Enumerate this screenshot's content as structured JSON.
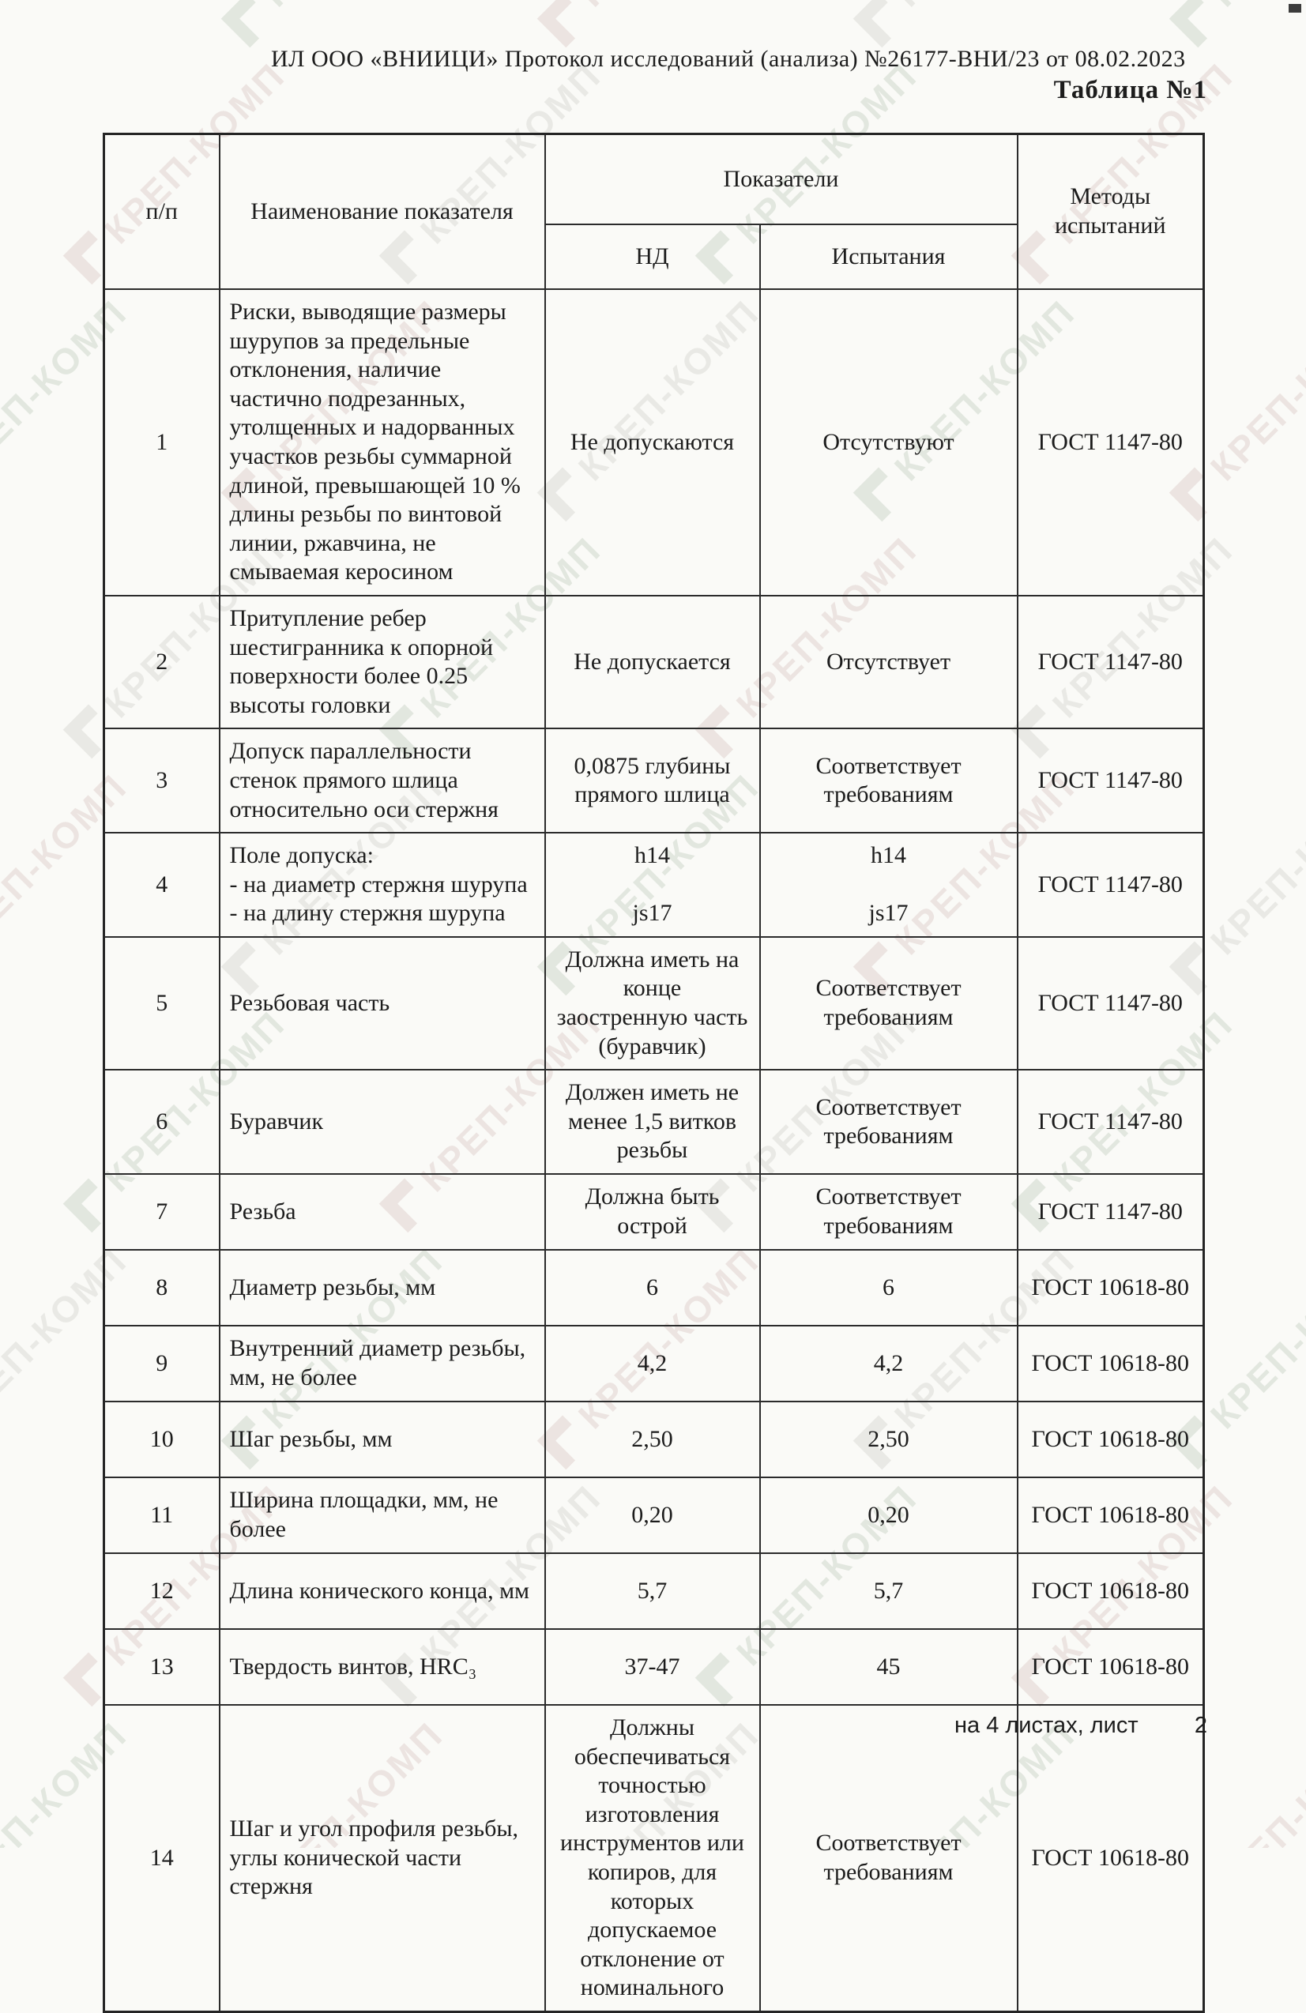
{
  "document": {
    "header_line": "ИЛ ООО «ВНИИЦИ» Протокол исследований (анализа)  №26177-ВНИ/23 от  08.02.2023",
    "table_caption": "Таблица №1",
    "footer": {
      "sheets_text": "на 4  листах, лист",
      "page_number": "2"
    }
  },
  "watermark": {
    "text": "КРЕП-КОМП",
    "colors": [
      "#e9e9e5",
      "#e2e7df",
      "#ece4e1"
    ]
  },
  "table": {
    "headers": {
      "num": "п/п",
      "name": "Наименование показателя",
      "group": "Показатели",
      "nd": "НД",
      "test": "Испытания",
      "methods": "Методы испытаний"
    },
    "rows": [
      {
        "num": "1",
        "name": "Риски, выводящие размеры шурупов за предельные отклонения, наличие частично подрезанных, утолщенных и надорванных участков резьбы суммарной длиной, превышающей 10 % длины резьбы по винтовой линии, ржавчина, не смываемая керосином",
        "nd": "Не допускаются",
        "test": "Отсутствуют",
        "method": "ГОСТ 1147-80"
      },
      {
        "num": "2",
        "name": "Притупление ребер шестигранника к опорной поверхности более 0.25 высоты головки",
        "nd": "Не допускается",
        "test": "Отсутствует",
        "method": "ГОСТ 1147-80"
      },
      {
        "num": "3",
        "name": "Допуск параллельности стенок прямого шлица относительно оси стержня",
        "nd": "0,0875 глубины прямого шлица",
        "test": "Соответствует требованиям",
        "method": "ГОСТ 1147-80"
      },
      {
        "num": "4",
        "name": "Поле допуска:\n- на диаметр стержня шурупа\n- на длину стержня шурупа",
        "nd": "h14\n\njs17",
        "test": "h14\n\njs17",
        "method": "ГОСТ 1147-80"
      },
      {
        "num": "5",
        "name": "Резьбовая часть",
        "nd": "Должна иметь на конце заостренную часть (буравчик)",
        "test": "Соответствует требованиям",
        "method": "ГОСТ 1147-80"
      },
      {
        "num": "6",
        "name": "Буравчик",
        "nd": "Должен иметь не менее 1,5 витков резьбы",
        "test": "Соответствует требованиям",
        "method": "ГОСТ 1147-80"
      },
      {
        "num": "7",
        "name": "Резьба",
        "nd": "Должна быть острой",
        "test": "Соответствует требованиям",
        "method": "ГОСТ 1147-80"
      },
      {
        "num": "8",
        "name": "Диаметр резьбы, мм",
        "nd": "6",
        "test": "6",
        "method": "ГОСТ 10618-80"
      },
      {
        "num": "9",
        "name": "Внутренний диаметр резьбы, мм, не более",
        "nd": "4,2",
        "test": "4,2",
        "method": "ГОСТ 10618-80"
      },
      {
        "num": "10",
        "name": "Шаг резьбы, мм",
        "nd": "2,50",
        "test": "2,50",
        "method": "ГОСТ 10618-80"
      },
      {
        "num": "11",
        "name": "Ширина площадки, мм, не более",
        "nd": "0,20",
        "test": "0,20",
        "method": "ГОСТ 10618-80"
      },
      {
        "num": "12",
        "name": "Длина конического конца, мм",
        "nd": "5,7",
        "test": "5,7",
        "method": "ГОСТ 10618-80"
      },
      {
        "num": "13",
        "name": "Твердость винтов, HRC₃",
        "nd": "37-47",
        "test": "45",
        "method": "ГОСТ 10618-80"
      },
      {
        "num": "14",
        "name": "Шаг и угол профиля резьбы, углы конической части стержня",
        "nd": "Должны обеспечиваться точностью изготовления инструментов или копиров, для которых допускаемое отклонение от номинального",
        "test": "Соответствует требованиям",
        "method": "ГОСТ 10618-80"
      }
    ]
  }
}
